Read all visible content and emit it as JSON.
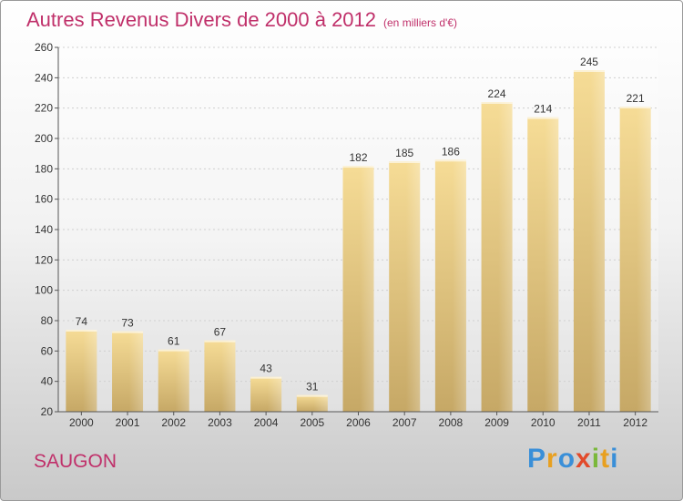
{
  "title": "Autres Revenus Divers de 2000 à 2012",
  "subtitle": "(en milliers d'€)",
  "place": "SAUGON",
  "brand": {
    "letters": [
      {
        "ch": "P",
        "color": "#3a8fd8"
      },
      {
        "ch": "r",
        "color": "#e8a020"
      },
      {
        "ch": "o",
        "color": "#3a8fd8"
      },
      {
        "ch": "x",
        "color": "#e24a2a"
      },
      {
        "ch": "i",
        "color": "#7ab83a"
      },
      {
        "ch": "t",
        "color": "#e8a020"
      },
      {
        "ch": "i",
        "color": "#3a8fd8"
      }
    ]
  },
  "chart_data": {
    "type": "bar",
    "categories": [
      "2000",
      "2001",
      "2002",
      "2003",
      "2004",
      "2005",
      "2006",
      "2007",
      "2008",
      "2009",
      "2010",
      "2011",
      "2012"
    ],
    "values": [
      74,
      73,
      61,
      67,
      43,
      31,
      182,
      185,
      186,
      224,
      214,
      245,
      221
    ],
    "ylim": [
      20,
      260
    ],
    "yticks": [
      20,
      40,
      60,
      80,
      100,
      120,
      140,
      160,
      180,
      200,
      220,
      240,
      260
    ],
    "grid": true,
    "bar_color": "#e8c77a"
  }
}
